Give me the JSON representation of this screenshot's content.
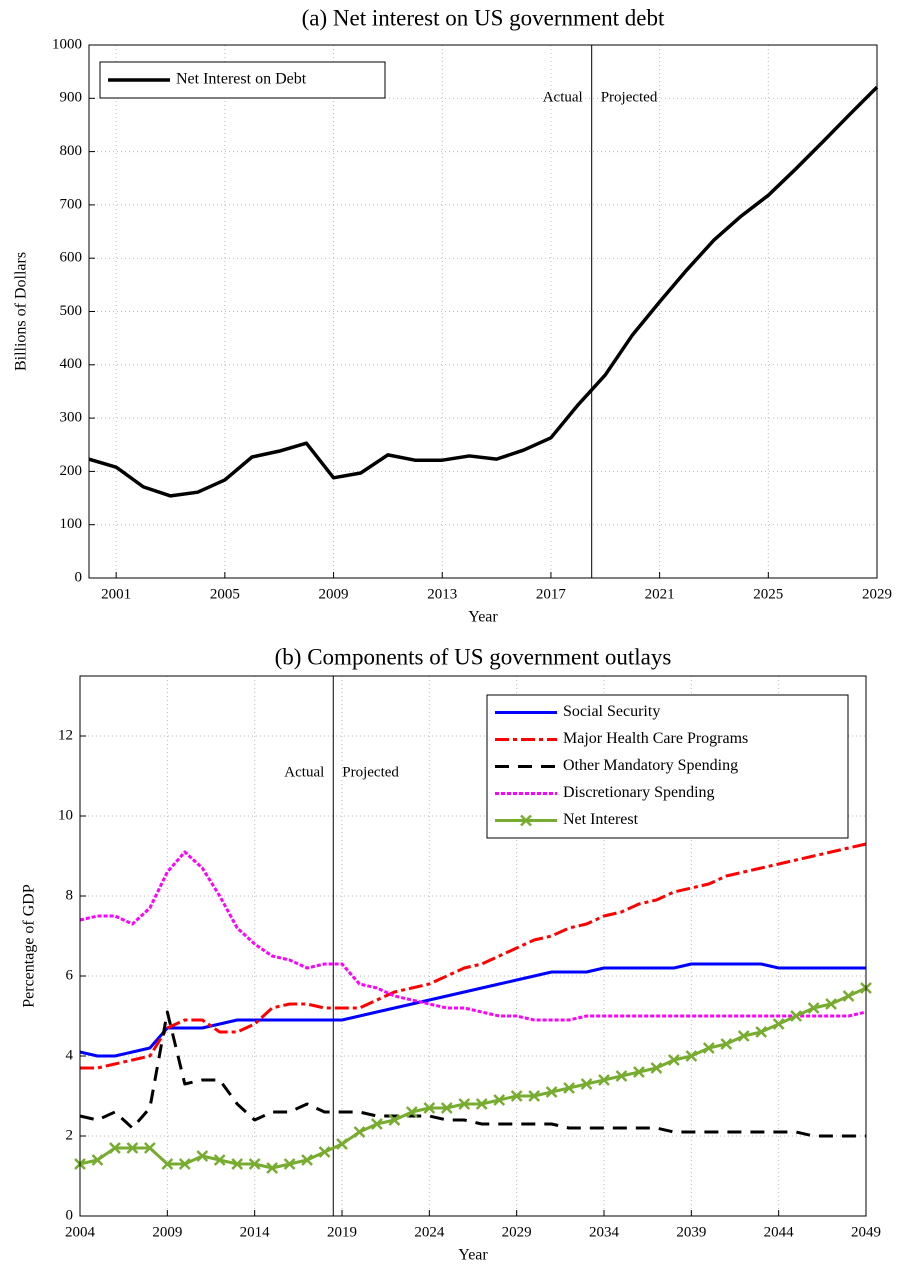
{
  "chart_data": [
    {
      "type": "line",
      "title": "(a) Net interest on US government debt",
      "x_label": "Year",
      "y_label": "Billions of Dollars",
      "x": [
        2000,
        2001,
        2002,
        2003,
        2004,
        2005,
        2006,
        2007,
        2008,
        2009,
        2010,
        2011,
        2012,
        2013,
        2014,
        2015,
        2016,
        2017,
        2018,
        2019,
        2020,
        2021,
        2022,
        2023,
        2024,
        2025,
        2026,
        2027,
        2028,
        2029
      ],
      "series": [
        {
          "name": "Net Interest on Debt",
          "color": "#000000",
          "line_style": "solid",
          "values": [
            223,
            208,
            171,
            154,
            161,
            184,
            227,
            238,
            253,
            188,
            197,
            231,
            221,
            221,
            229,
            223,
            240,
            263,
            325,
            381,
            456,
            518,
            578,
            634,
            679,
            718,
            767,
            818,
            870,
            921
          ]
        }
      ],
      "xlim": [
        2000,
        2029
      ],
      "xticks": [
        2001,
        2005,
        2009,
        2013,
        2017,
        2021,
        2025,
        2029
      ],
      "ylim": [
        0,
        1000
      ],
      "yticks": [
        0,
        100,
        200,
        300,
        400,
        500,
        600,
        700,
        800,
        900,
        1000
      ],
      "grid": true,
      "legend": "upper left",
      "divider_x": 2018.5,
      "annotations": [
        "Actual",
        "Projected"
      ]
    },
    {
      "type": "line",
      "title": "(b) Components of US government outlays",
      "x_label": "Year",
      "y_label": "Percentage of GDP",
      "x": [
        2004,
        2005,
        2006,
        2007,
        2008,
        2009,
        2010,
        2011,
        2012,
        2013,
        2014,
        2015,
        2016,
        2017,
        2018,
        2019,
        2020,
        2021,
        2022,
        2023,
        2024,
        2025,
        2026,
        2027,
        2028,
        2029,
        2030,
        2031,
        2032,
        2033,
        2034,
        2035,
        2036,
        2037,
        2038,
        2039,
        2040,
        2041,
        2042,
        2043,
        2044,
        2045,
        2046,
        2047,
        2048,
        2049
      ],
      "series": [
        {
          "name": "Social Security",
          "color": "#0000ff",
          "line_style": "solid",
          "values": [
            4.1,
            4.0,
            4.0,
            4.1,
            4.2,
            4.7,
            4.7,
            4.7,
            4.8,
            4.9,
            4.9,
            4.9,
            4.9,
            4.9,
            4.9,
            4.9,
            5.0,
            5.1,
            5.2,
            5.3,
            5.4,
            5.5,
            5.6,
            5.7,
            5.8,
            5.9,
            6.0,
            6.1,
            6.1,
            6.1,
            6.2,
            6.2,
            6.2,
            6.2,
            6.2,
            6.3,
            6.3,
            6.3,
            6.3,
            6.3,
            6.2,
            6.2,
            6.2,
            6.2,
            6.2,
            6.2
          ]
        },
        {
          "name": "Major Health Care Programs",
          "color": "#ff0000",
          "line_style": "dashdot",
          "values": [
            3.7,
            3.7,
            3.8,
            3.9,
            4.0,
            4.7,
            4.9,
            4.9,
            4.6,
            4.6,
            4.8,
            5.2,
            5.3,
            5.3,
            5.2,
            5.2,
            5.2,
            5.4,
            5.6,
            5.7,
            5.8,
            6.0,
            6.2,
            6.3,
            6.5,
            6.7,
            6.9,
            7.0,
            7.2,
            7.3,
            7.5,
            7.6,
            7.8,
            7.9,
            8.1,
            8.2,
            8.3,
            8.5,
            8.6,
            8.7,
            8.8,
            8.9,
            9.0,
            9.1,
            9.2,
            9.3
          ]
        },
        {
          "name": "Other Mandatory Spending",
          "color": "#000000",
          "line_style": "dashed",
          "values": [
            2.5,
            2.4,
            2.6,
            2.2,
            2.7,
            5.1,
            3.3,
            3.4,
            3.4,
            2.8,
            2.4,
            2.6,
            2.6,
            2.8,
            2.6,
            2.6,
            2.6,
            2.5,
            2.5,
            2.5,
            2.5,
            2.4,
            2.4,
            2.3,
            2.3,
            2.3,
            2.3,
            2.3,
            2.2,
            2.2,
            2.2,
            2.2,
            2.2,
            2.2,
            2.1,
            2.1,
            2.1,
            2.1,
            2.1,
            2.1,
            2.1,
            2.1,
            2.0,
            2.0,
            2.0,
            2.0
          ]
        },
        {
          "name": "Discretionary Spending",
          "color": "#ff00ff",
          "line_style": "dotted",
          "values": [
            7.4,
            7.5,
            7.5,
            7.3,
            7.7,
            8.6,
            9.1,
            8.7,
            8.0,
            7.2,
            6.8,
            6.5,
            6.4,
            6.2,
            6.3,
            6.3,
            5.8,
            5.7,
            5.5,
            5.4,
            5.3,
            5.2,
            5.2,
            5.1,
            5.0,
            5.0,
            4.9,
            4.9,
            4.9,
            5.0,
            5.0,
            5.0,
            5.0,
            5.0,
            5.0,
            5.0,
            5.0,
            5.0,
            5.0,
            5.0,
            5.0,
            5.0,
            5.0,
            5.0,
            5.0,
            5.1
          ]
        },
        {
          "name": "Net Interest",
          "color": "#77ac30",
          "line_style": "solid",
          "marker": "x",
          "values": [
            1.3,
            1.4,
            1.7,
            1.7,
            1.7,
            1.3,
            1.3,
            1.5,
            1.4,
            1.3,
            1.3,
            1.2,
            1.3,
            1.4,
            1.6,
            1.8,
            2.1,
            2.3,
            2.4,
            2.6,
            2.7,
            2.7,
            2.8,
            2.8,
            2.9,
            3.0,
            3.0,
            3.1,
            3.2,
            3.3,
            3.4,
            3.5,
            3.6,
            3.7,
            3.9,
            4.0,
            4.2,
            4.3,
            4.5,
            4.6,
            4.8,
            5.0,
            5.2,
            5.3,
            5.5,
            5.7
          ]
        }
      ],
      "xlim": [
        2004,
        2049
      ],
      "xticks": [
        2004,
        2009,
        2014,
        2019,
        2024,
        2029,
        2034,
        2039,
        2044,
        2049
      ],
      "ylim": [
        0,
        13.5
      ],
      "yticks": [
        0,
        2,
        4,
        6,
        8,
        10,
        12
      ],
      "grid": true,
      "legend": "upper right",
      "divider_x": 2018.5,
      "annotations": [
        "Actual",
        "Projected"
      ]
    }
  ]
}
